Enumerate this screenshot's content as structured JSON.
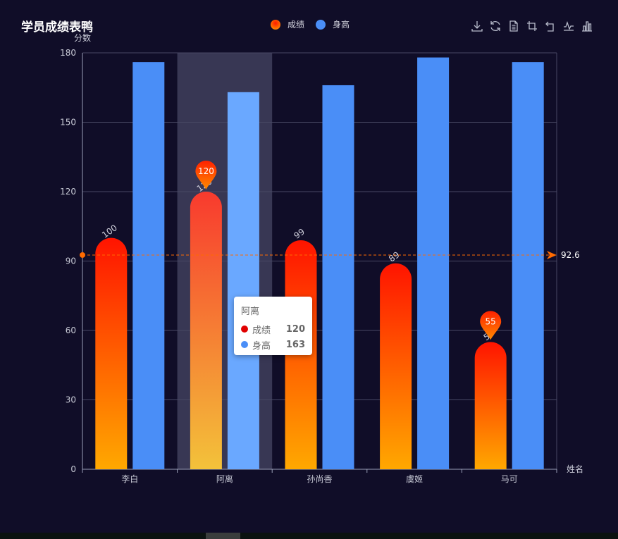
{
  "title": "学员成绩表鸭",
  "legend": [
    {
      "name": "成绩",
      "color": "#ff3d00"
    },
    {
      "name": "身高",
      "color": "#4a8ef7"
    }
  ],
  "toolbox": [
    "download-icon",
    "refresh-icon",
    "data-view-icon",
    "crop-icon",
    "restore-icon",
    "line-chart-icon",
    "bar-chart-icon"
  ],
  "tooltip": {
    "title": "阿离",
    "rows": [
      {
        "name": "成绩",
        "value": "120",
        "color": "#e10000"
      },
      {
        "name": "身高",
        "value": "163",
        "color": "#4a8ef7"
      }
    ]
  },
  "chart_data": {
    "type": "bar",
    "categories": [
      "李白",
      "阿离",
      "孙尚香",
      "虞姬",
      "马可"
    ],
    "series": [
      {
        "name": "成绩",
        "values": [
          100,
          120,
          99,
          89,
          55
        ],
        "labels": [
          "100",
          "120",
          "99",
          "89",
          "55"
        ]
      },
      {
        "name": "身高",
        "values": [
          176,
          163,
          166,
          178,
          176
        ]
      }
    ],
    "xlabel": "姓名",
    "ylabel": "分数",
    "ylim": [
      0,
      180
    ],
    "yticks": [
      0,
      30,
      60,
      90,
      120,
      150,
      180
    ],
    "highlight_category": "阿离",
    "mark_points": [
      {
        "category": "阿离",
        "value": 120,
        "label": "120"
      },
      {
        "category": "马可",
        "value": 55,
        "label": "55"
      }
    ],
    "mark_line": {
      "type": "average",
      "value": 92.6,
      "label": "92.6"
    },
    "grid": true,
    "colors": {
      "score_top": "#ff1a00",
      "score_bottom": "#ffa500",
      "height": "#4a8ef7",
      "height_highlight": "#6aa8ff",
      "mark_line": "#ff6a00",
      "axis": "#9aa0b8",
      "grid": "#484864"
    }
  }
}
